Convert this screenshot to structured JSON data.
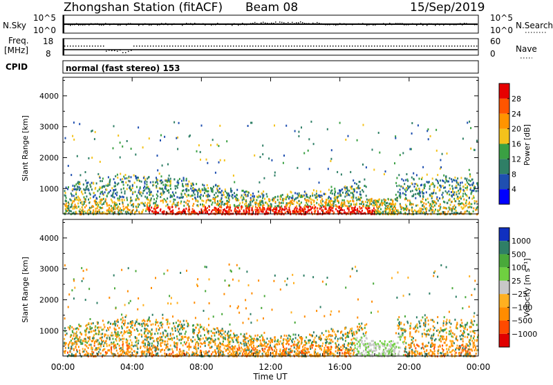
{
  "header": {
    "station": "Zhongshan Station (fitACF)",
    "beam": "Beam 08",
    "date": "15/Sep/2019"
  },
  "panel_labels": {
    "nsky": "N.Sky",
    "freq_a": "Freq.",
    "freq_b": "[MHz]",
    "cpid": "CPID",
    "nsearch": "N.Search",
    "nave": "Nave",
    "mode": "normal (fast stereo) 153"
  },
  "noise_axis": {
    "left_ticks": [
      "10^5",
      "10^0"
    ],
    "right_ticks": [
      "10^5",
      "10^0"
    ]
  },
  "freq_axis": {
    "left_ticks": [
      "18",
      "8"
    ],
    "right_ticks": [
      "60",
      "0"
    ]
  },
  "chart_data": [
    {
      "type": "heatmap",
      "title": "",
      "xlabel": "Time UT",
      "ylabel": "Slant Range [km]",
      "x_ticks": [
        "00:00",
        "04:00",
        "08:00",
        "12:00",
        "16:00",
        "20:00",
        "00:00"
      ],
      "y_ticks": [
        "1000",
        "2000",
        "3000",
        "4000"
      ],
      "ylim": [
        180,
        4600
      ],
      "colorbar": {
        "label": "Power [dB]",
        "ticks": [
          "4",
          "8",
          "12",
          "16",
          "20",
          "24",
          "28"
        ],
        "colors": [
          "#0000ff",
          "#1f4fb0",
          "#2f7f66",
          "#3aa043",
          "#f4c21b",
          "#ff9400",
          "#ff5500",
          "#e60000"
        ]
      }
    },
    {
      "type": "heatmap",
      "title": "",
      "xlabel": "Time UT",
      "ylabel": "Slant Range [km]",
      "x_ticks": [
        "00:00",
        "04:00",
        "08:00",
        "12:00",
        "16:00",
        "20:00",
        "00:00"
      ],
      "y_ticks": [
        "1000",
        "2000",
        "3000",
        "4000"
      ],
      "ylim": [
        180,
        4600
      ],
      "colorbar": {
        "label": "Velocity [m s⁻¹]",
        "ticks": [
          "1000",
          "500",
          "100",
          "25",
          "−25",
          "−100",
          "−500",
          "−1000"
        ],
        "colors": [
          "#1030c0",
          "#2f7f66",
          "#49a93a",
          "#6fd040",
          "#c8c8c8",
          "#ffb020",
          "#ff8c00",
          "#ff4a00",
          "#e00000"
        ]
      }
    }
  ]
}
